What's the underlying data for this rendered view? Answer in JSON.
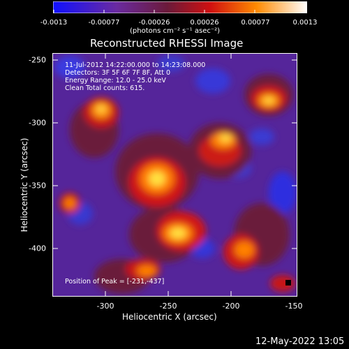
{
  "colorbar": {
    "tick_labels": [
      "-0.0013",
      "-0.00077",
      "-0.00026",
      "0.00026",
      "0.00077",
      "0.0013"
    ],
    "units": "(photons cm⁻² s⁻¹ asec⁻²)"
  },
  "title": "Reconstructed RHESSI Image",
  "annotations": {
    "time_range": "11-Jul-2012 14:22:00.000 to 14:23:08.000",
    "detectors": "Detectors: 3F 5F 6F 7F 8F, Att 0",
    "energy_range": "Energy Range: 12.0 - 25.0 keV",
    "clean": "Clean    Total counts: 615.",
    "peak": "Position of Peak = [-231,-437]"
  },
  "axes": {
    "xlabel": "Heliocentric X (arcsec)",
    "ylabel": "Heliocentric Y (arcsec)",
    "xticks": [
      "-300",
      "-250",
      "-200",
      "-150"
    ],
    "yticks": [
      "-250",
      "-300",
      "-350",
      "-400"
    ],
    "xlim": [
      -345,
      -150
    ],
    "ylim": [
      -437,
      -243
    ]
  },
  "footer_date": "12-May-2022 13:05",
  "colors": {
    "background": "#000000",
    "foreground": "#ffffff"
  }
}
